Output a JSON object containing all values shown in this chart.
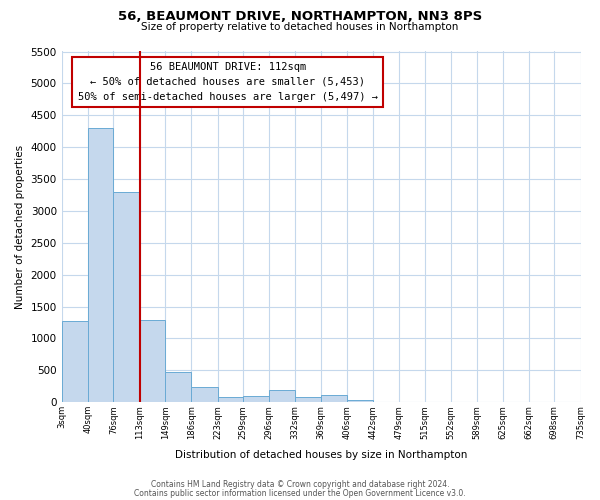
{
  "title": "56, BEAUMONT DRIVE, NORTHAMPTON, NN3 8PS",
  "subtitle": "Size of property relative to detached houses in Northampton",
  "xlabel": "Distribution of detached houses by size in Northampton",
  "ylabel": "Number of detached properties",
  "footer_line1": "Contains HM Land Registry data © Crown copyright and database right 2024.",
  "footer_line2": "Contains public sector information licensed under the Open Government Licence v3.0.",
  "bin_edges": [
    3,
    40,
    76,
    113,
    149,
    186,
    223,
    259,
    296,
    332,
    369,
    406,
    442,
    479,
    515,
    552,
    589,
    625,
    662,
    698,
    735
  ],
  "bin_labels": [
    "3sqm",
    "40sqm",
    "76sqm",
    "113sqm",
    "149sqm",
    "186sqm",
    "223sqm",
    "259sqm",
    "296sqm",
    "332sqm",
    "369sqm",
    "406sqm",
    "442sqm",
    "479sqm",
    "515sqm",
    "552sqm",
    "589sqm",
    "625sqm",
    "662sqm",
    "698sqm",
    "735sqm"
  ],
  "counts": [
    1270,
    4300,
    3300,
    1290,
    480,
    240,
    80,
    100,
    190,
    80,
    120,
    30,
    10,
    0,
    0,
    0,
    0,
    0,
    0,
    0
  ],
  "bar_color": "#c5d8ed",
  "bar_edge_color": "#6aaad4",
  "vline_x": 113,
  "vline_color": "#c00000",
  "annotation_title": "56 BEAUMONT DRIVE: 112sqm",
  "annotation_line1": "← 50% of detached houses are smaller (5,453)",
  "annotation_line2": "50% of semi-detached houses are larger (5,497) →",
  "annotation_box_color": "#c00000",
  "ylim": [
    0,
    5500
  ],
  "yticks": [
    0,
    500,
    1000,
    1500,
    2000,
    2500,
    3000,
    3500,
    4000,
    4500,
    5000,
    5500
  ],
  "background_color": "#ffffff",
  "grid_color": "#c5d8ec"
}
